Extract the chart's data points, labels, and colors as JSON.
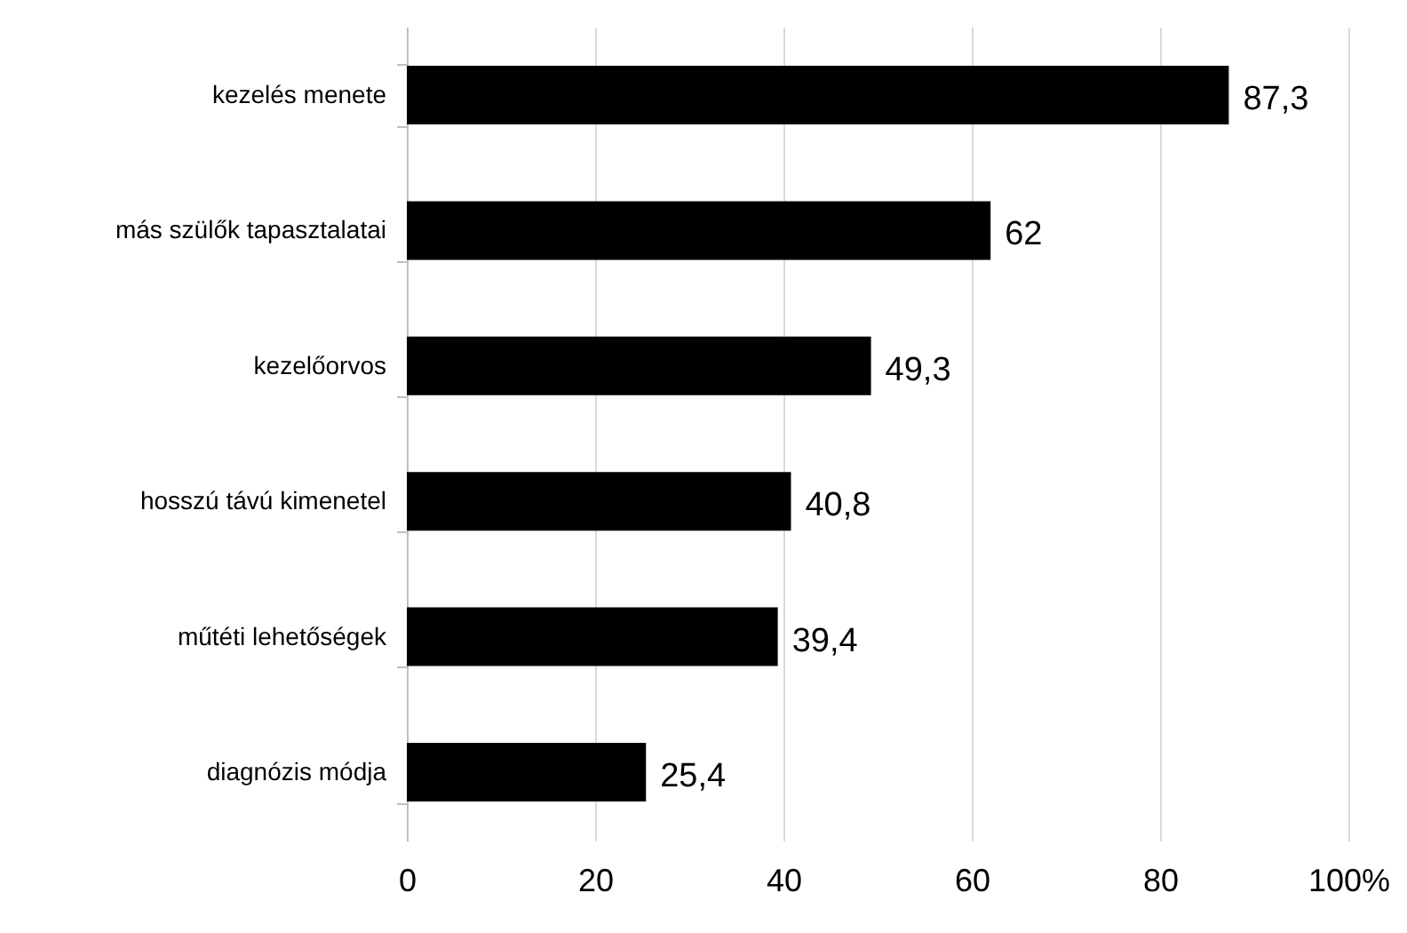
{
  "chart_data": {
    "type": "bar",
    "orientation": "horizontal",
    "categories": [
      "kezelés menete",
      "más szülők tapasztalatai",
      "kezelőorvos",
      "hosszú távú kimenetel",
      "műtéti lehetőségek",
      "diagnózis módja"
    ],
    "values": [
      87.3,
      62,
      49.3,
      40.8,
      39.4,
      25.4
    ],
    "value_labels": [
      "87,3",
      "62",
      "49,3",
      "40,8",
      "39,4",
      "25,4"
    ],
    "color": "#000000",
    "xlim": [
      0,
      100
    ],
    "xticks": [
      0,
      20,
      40,
      60,
      80,
      {
        "value": 100,
        "label": "100%"
      }
    ],
    "grid": "x"
  }
}
